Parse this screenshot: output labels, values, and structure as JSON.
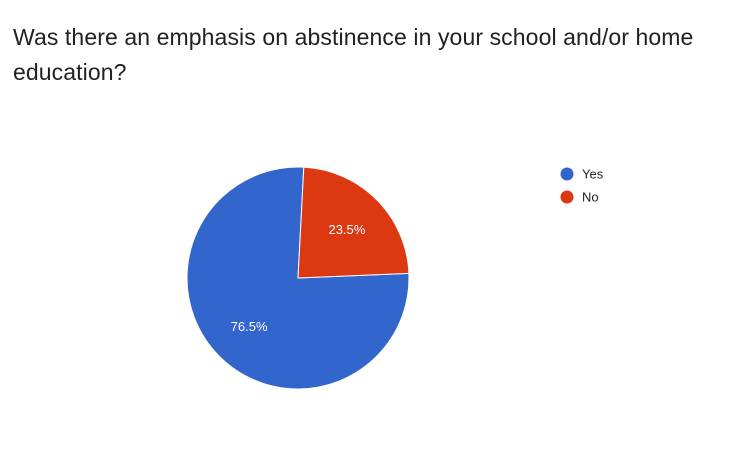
{
  "chart_data": {
    "type": "pie",
    "title": "Was there an emphasis on abstinence in your school and/or home education?",
    "categories": [
      "Yes",
      "No"
    ],
    "values": [
      76.5,
      23.5
    ],
    "value_labels": [
      "76.5%",
      "23.5%"
    ],
    "colors": [
      "#3366cc",
      "#dc3912"
    ],
    "legend": {
      "position": "right",
      "entries": [
        "Yes",
        "No"
      ]
    }
  }
}
